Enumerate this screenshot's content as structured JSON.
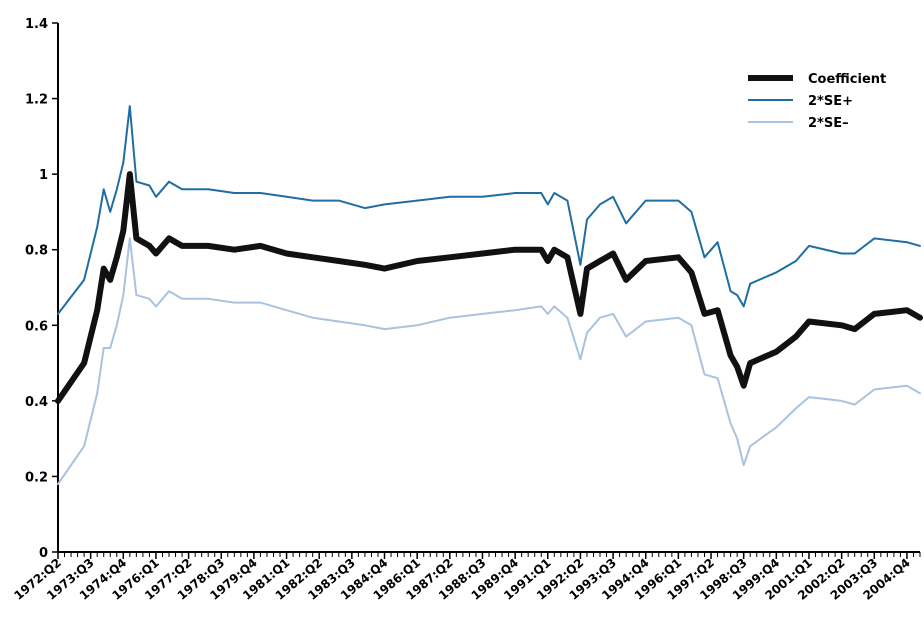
{
  "chart_data": {
    "type": "line",
    "title": "",
    "xlabel": "",
    "ylabel": "",
    "ylim": [
      0,
      1.4
    ],
    "y_ticks": [
      0,
      0.2,
      0.4,
      0.6,
      0.8,
      1,
      1.2,
      1.4
    ],
    "y_tick_labels": [
      "0",
      "0.2",
      "0.4",
      "0.6",
      "0.8",
      "1",
      "1.2",
      "1.4"
    ],
    "x_start": "1972:Q2",
    "x_end": "2005:Q2",
    "x_tick_labels": [
      "1972:Q2",
      "1973:Q3",
      "1974:Q4",
      "1976:Q1",
      "1977:Q2",
      "1978:Q3",
      "1979:Q4",
      "1981:Q1",
      "1982:Q2",
      "1983:Q3",
      "1984:Q4",
      "1986:Q1",
      "1987:Q2",
      "1988:Q3",
      "1989:Q4",
      "1991:Q1",
      "1992:Q2",
      "1993:Q3",
      "1994:Q4",
      "1996:Q1",
      "1997:Q2",
      "1998:Q3",
      "1999:Q4",
      "2001:Q1",
      "2002:Q2",
      "2003:Q3",
      "2004:Q4"
    ],
    "grid": false,
    "legend_position": "top-right",
    "legend": [
      "Coefficient",
      "2*SE+",
      "2*SE–"
    ],
    "series": [
      {
        "name": "Coefficient",
        "color": "#111111",
        "points": [
          [
            "1972:Q2",
            0.4
          ],
          [
            "1973:Q2",
            0.5
          ],
          [
            "1973:Q4",
            0.64
          ],
          [
            "1974:Q1",
            0.75
          ],
          [
            "1974:Q2",
            0.72
          ],
          [
            "1974:Q3",
            0.78
          ],
          [
            "1974:Q4",
            0.85
          ],
          [
            "1975:Q1",
            1.0
          ],
          [
            "1975:Q2",
            0.83
          ],
          [
            "1975:Q4",
            0.81
          ],
          [
            "1976:Q1",
            0.79
          ],
          [
            "1976:Q3",
            0.83
          ],
          [
            "1977:Q1",
            0.81
          ],
          [
            "1978:Q1",
            0.81
          ],
          [
            "1979:Q1",
            0.8
          ],
          [
            "1980:Q1",
            0.81
          ],
          [
            "1981:Q1",
            0.79
          ],
          [
            "1982:Q1",
            0.78
          ],
          [
            "1983:Q1",
            0.77
          ],
          [
            "1984:Q1",
            0.76
          ],
          [
            "1984:Q4",
            0.75
          ],
          [
            "1986:Q1",
            0.77
          ],
          [
            "1987:Q2",
            0.78
          ],
          [
            "1988:Q3",
            0.79
          ],
          [
            "1989:Q4",
            0.8
          ],
          [
            "1990:Q4",
            0.8
          ],
          [
            "1991:Q1",
            0.77
          ],
          [
            "1991:Q2",
            0.8
          ],
          [
            "1991:Q4",
            0.78
          ],
          [
            "1992:Q2",
            0.63
          ],
          [
            "1992:Q3",
            0.75
          ],
          [
            "1993:Q1",
            0.77
          ],
          [
            "1993:Q3",
            0.79
          ],
          [
            "1994:Q1",
            0.72
          ],
          [
            "1994:Q4",
            0.77
          ],
          [
            "1996:Q1",
            0.78
          ],
          [
            "1996:Q3",
            0.74
          ],
          [
            "1997:Q1",
            0.63
          ],
          [
            "1997:Q3",
            0.64
          ],
          [
            "1998:Q1",
            0.52
          ],
          [
            "1998:Q2",
            0.49
          ],
          [
            "1998:Q3",
            0.44
          ],
          [
            "1998:Q4",
            0.5
          ],
          [
            "1999:Q4",
            0.53
          ],
          [
            "2000:Q3",
            0.57
          ],
          [
            "2001:Q1",
            0.61
          ],
          [
            "2002:Q2",
            0.6
          ],
          [
            "2002:Q4",
            0.59
          ],
          [
            "2003:Q3",
            0.63
          ],
          [
            "2004:Q4",
            0.64
          ],
          [
            "2005:Q2",
            0.62
          ]
        ]
      },
      {
        "name": "2*SE+",
        "color": "#1f6ea3",
        "points": [
          [
            "1972:Q2",
            0.63
          ],
          [
            "1973:Q2",
            0.72
          ],
          [
            "1973:Q4",
            0.86
          ],
          [
            "1974:Q1",
            0.96
          ],
          [
            "1974:Q2",
            0.9
          ],
          [
            "1974:Q3",
            0.96
          ],
          [
            "1974:Q4",
            1.03
          ],
          [
            "1975:Q1",
            1.18
          ],
          [
            "1975:Q2",
            0.98
          ],
          [
            "1975:Q4",
            0.97
          ],
          [
            "1976:Q1",
            0.94
          ],
          [
            "1976:Q3",
            0.98
          ],
          [
            "1977:Q1",
            0.96
          ],
          [
            "1978:Q1",
            0.96
          ],
          [
            "1979:Q1",
            0.95
          ],
          [
            "1980:Q1",
            0.95
          ],
          [
            "1981:Q1",
            0.94
          ],
          [
            "1982:Q1",
            0.93
          ],
          [
            "1983:Q1",
            0.93
          ],
          [
            "1984:Q1",
            0.91
          ],
          [
            "1984:Q4",
            0.92
          ],
          [
            "1986:Q1",
            0.93
          ],
          [
            "1987:Q2",
            0.94
          ],
          [
            "1988:Q3",
            0.94
          ],
          [
            "1989:Q4",
            0.95
          ],
          [
            "1990:Q4",
            0.95
          ],
          [
            "1991:Q1",
            0.92
          ],
          [
            "1991:Q2",
            0.95
          ],
          [
            "1991:Q4",
            0.93
          ],
          [
            "1992:Q2",
            0.76
          ],
          [
            "1992:Q3",
            0.88
          ],
          [
            "1993:Q1",
            0.92
          ],
          [
            "1993:Q3",
            0.94
          ],
          [
            "1994:Q1",
            0.87
          ],
          [
            "1994:Q4",
            0.93
          ],
          [
            "1996:Q1",
            0.93
          ],
          [
            "1996:Q3",
            0.9
          ],
          [
            "1997:Q1",
            0.78
          ],
          [
            "1997:Q3",
            0.82
          ],
          [
            "1998:Q1",
            0.69
          ],
          [
            "1998:Q2",
            0.68
          ],
          [
            "1998:Q3",
            0.65
          ],
          [
            "1998:Q4",
            0.71
          ],
          [
            "1999:Q4",
            0.74
          ],
          [
            "2000:Q3",
            0.77
          ],
          [
            "2001:Q1",
            0.81
          ],
          [
            "2002:Q2",
            0.79
          ],
          [
            "2002:Q4",
            0.79
          ],
          [
            "2003:Q3",
            0.83
          ],
          [
            "2004:Q4",
            0.82
          ],
          [
            "2005:Q2",
            0.81
          ]
        ]
      },
      {
        "name": "2*SE–",
        "color": "#a9c3de",
        "points": [
          [
            "1972:Q2",
            0.18
          ],
          [
            "1973:Q2",
            0.28
          ],
          [
            "1973:Q4",
            0.42
          ],
          [
            "1974:Q1",
            0.54
          ],
          [
            "1974:Q2",
            0.54
          ],
          [
            "1974:Q3",
            0.6
          ],
          [
            "1974:Q4",
            0.68
          ],
          [
            "1975:Q1",
            0.83
          ],
          [
            "1975:Q2",
            0.68
          ],
          [
            "1975:Q4",
            0.67
          ],
          [
            "1976:Q1",
            0.65
          ],
          [
            "1976:Q3",
            0.69
          ],
          [
            "1977:Q1",
            0.67
          ],
          [
            "1978:Q1",
            0.67
          ],
          [
            "1979:Q1",
            0.66
          ],
          [
            "1980:Q1",
            0.66
          ],
          [
            "1981:Q1",
            0.64
          ],
          [
            "1982:Q1",
            0.62
          ],
          [
            "1983:Q1",
            0.61
          ],
          [
            "1984:Q1",
            0.6
          ],
          [
            "1984:Q4",
            0.59
          ],
          [
            "1986:Q1",
            0.6
          ],
          [
            "1987:Q2",
            0.62
          ],
          [
            "1988:Q3",
            0.63
          ],
          [
            "1989:Q4",
            0.64
          ],
          [
            "1990:Q4",
            0.65
          ],
          [
            "1991:Q1",
            0.63
          ],
          [
            "1991:Q2",
            0.65
          ],
          [
            "1991:Q4",
            0.62
          ],
          [
            "1992:Q2",
            0.51
          ],
          [
            "1992:Q3",
            0.58
          ],
          [
            "1993:Q1",
            0.62
          ],
          [
            "1993:Q3",
            0.63
          ],
          [
            "1994:Q1",
            0.57
          ],
          [
            "1994:Q4",
            0.61
          ],
          [
            "1996:Q1",
            0.62
          ],
          [
            "1996:Q3",
            0.6
          ],
          [
            "1997:Q1",
            0.47
          ],
          [
            "1997:Q3",
            0.46
          ],
          [
            "1998:Q1",
            0.34
          ],
          [
            "1998:Q2",
            0.3
          ],
          [
            "1998:Q3",
            0.23
          ],
          [
            "1998:Q4",
            0.28
          ],
          [
            "1999:Q4",
            0.33
          ],
          [
            "2000:Q3",
            0.38
          ],
          [
            "2001:Q1",
            0.41
          ],
          [
            "2002:Q2",
            0.4
          ],
          [
            "2002:Q4",
            0.39
          ],
          [
            "2003:Q3",
            0.43
          ],
          [
            "2004:Q4",
            0.44
          ],
          [
            "2005:Q2",
            0.42
          ]
        ]
      }
    ]
  }
}
